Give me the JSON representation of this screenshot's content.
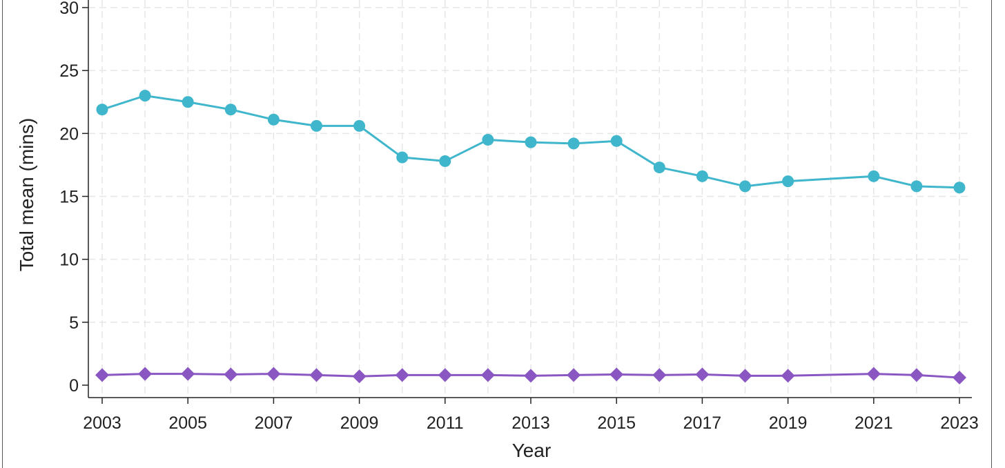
{
  "chart_data": {
    "type": "line",
    "title": "",
    "xlabel": "Year",
    "ylabel": "Total mean (mins)",
    "xlim": [
      2003,
      2023
    ],
    "ylim": [
      0,
      30
    ],
    "xticks": [
      2003,
      2005,
      2007,
      2009,
      2011,
      2013,
      2015,
      2017,
      2019,
      2021,
      2023
    ],
    "yticks": [
      0,
      5,
      10,
      15,
      20,
      25,
      30
    ],
    "grid": true,
    "legend": "none",
    "series": [
      {
        "name": "series-1",
        "color": "#3fb6cc",
        "marker": "circle",
        "x": [
          2003,
          2004,
          2005,
          2006,
          2007,
          2008,
          2009,
          2010,
          2011,
          2012,
          2013,
          2014,
          2015,
          2016,
          2017,
          2018,
          2019,
          2021,
          2022,
          2023
        ],
        "values": [
          21.9,
          23.0,
          22.5,
          21.9,
          21.1,
          20.6,
          20.6,
          18.1,
          17.8,
          19.5,
          19.3,
          19.2,
          19.4,
          17.3,
          16.6,
          15.8,
          16.2,
          16.6,
          15.8,
          15.7
        ]
      },
      {
        "name": "series-2",
        "color": "#8a57c2",
        "marker": "diamond",
        "x": [
          2003,
          2004,
          2005,
          2006,
          2007,
          2008,
          2009,
          2010,
          2011,
          2012,
          2013,
          2014,
          2015,
          2016,
          2017,
          2018,
          2019,
          2021,
          2022,
          2023
        ],
        "values": [
          0.8,
          0.9,
          0.9,
          0.85,
          0.9,
          0.8,
          0.7,
          0.8,
          0.8,
          0.8,
          0.75,
          0.8,
          0.85,
          0.8,
          0.85,
          0.75,
          0.75,
          0.9,
          0.8,
          0.6
        ]
      }
    ]
  }
}
